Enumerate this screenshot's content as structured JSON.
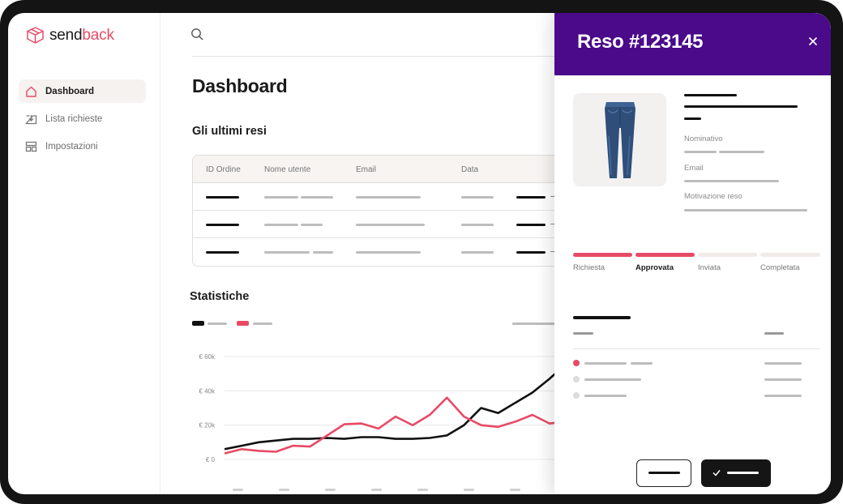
{
  "brand": {
    "name_part1": "send",
    "name_part2": "back",
    "accent_color": "#e84a66"
  },
  "sidebar": {
    "items": [
      {
        "label": "Dashboard",
        "icon": "home-icon",
        "active": true
      },
      {
        "label": "Lista richieste",
        "icon": "inbox-icon",
        "active": false
      },
      {
        "label": "Impostazioni",
        "icon": "settings-icon",
        "active": false
      }
    ]
  },
  "main": {
    "title": "Dashboard",
    "recent_title": "Gli ultimi resi",
    "table": {
      "columns": [
        "ID Ordine",
        "Nome utente",
        "Email",
        "Data"
      ]
    },
    "stats_title": "Statistiche",
    "chart_data": {
      "type": "line",
      "yticks": [
        "€ 0",
        "€ 20k",
        "€ 40k",
        "€ 60k"
      ],
      "ylim": [
        0,
        60000
      ],
      "series": [
        {
          "color": "#111111",
          "values": [
            6000,
            8000,
            10000,
            11000,
            12000,
            12000,
            12500,
            12000,
            13000,
            13000,
            12000,
            12000,
            12500,
            14000,
            20000,
            30000,
            27000,
            33000,
            39000,
            47000,
            56000
          ]
        },
        {
          "color": "#e84a66",
          "values": [
            3500,
            6000,
            5000,
            4500,
            8000,
            7500,
            14000,
            20500,
            21000,
            18000,
            25000,
            20000,
            26000,
            36000,
            25000,
            20000,
            19000,
            22000,
            26000,
            21000,
            22000
          ]
        }
      ]
    }
  },
  "panel": {
    "title": "Reso #123145",
    "field_labels": {
      "name": "Nominativo",
      "email": "Email",
      "reason": "Motivazione reso"
    },
    "steps": [
      {
        "label": "Richiesta",
        "done": true
      },
      {
        "label": "Approvata",
        "done": true
      },
      {
        "label": "Inviata",
        "done": false
      },
      {
        "label": "Completata",
        "done": false
      }
    ],
    "colors": {
      "header": "#4a0a8a",
      "step_done": "#e84a66",
      "step_todo": "#f1ebe8"
    }
  }
}
